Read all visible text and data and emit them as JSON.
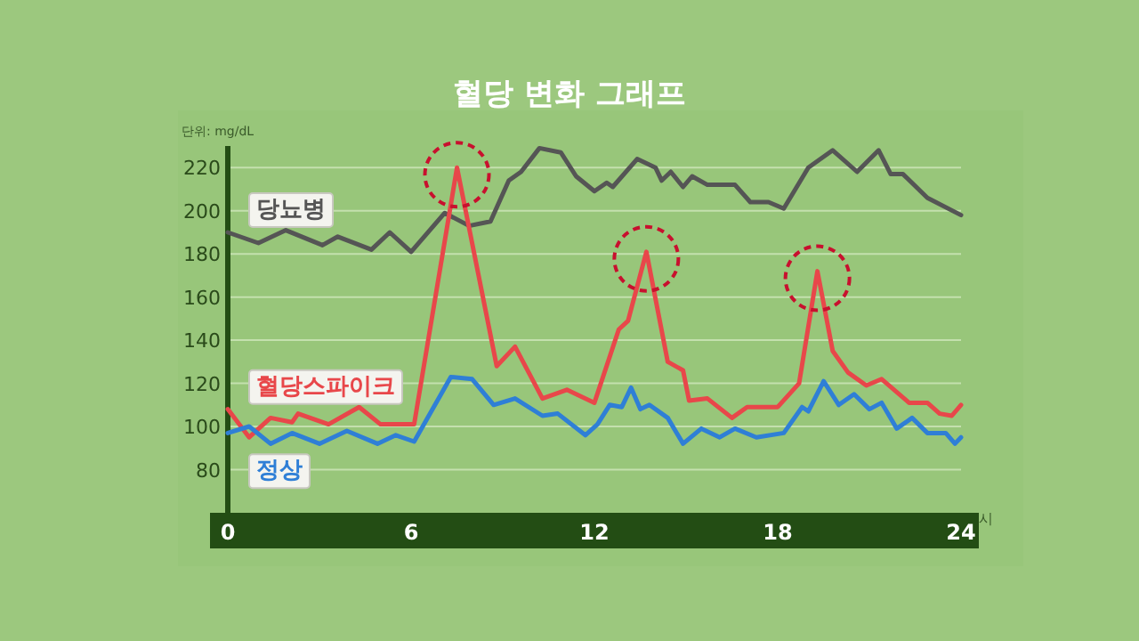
{
  "chart_data": {
    "type": "line",
    "title": "혈당 변화 그래프",
    "ylabel": "단위: mg/dL",
    "xlabel": "시",
    "xlim": [
      0,
      24
    ],
    "xticks": [
      0,
      6,
      12,
      18,
      24
    ],
    "ylim": [
      60,
      230
    ],
    "yticks": [
      80,
      100,
      120,
      140,
      160,
      180,
      200,
      220
    ],
    "grid": "y",
    "marker": "none",
    "line_style": "solid",
    "series": [
      {
        "name": "당뇨병",
        "color": "#555555",
        "x": [
          0,
          1,
          1.9,
          3.1,
          3.6,
          4.7,
          5.3,
          6,
          7.1,
          7.9,
          8.6,
          9.2,
          9.6,
          10.2,
          10.9,
          11.4,
          12,
          12.4,
          12.6,
          13.4,
          14.0,
          14.2,
          14.5,
          14.9,
          15.2,
          15.7,
          16.6,
          17.1,
          17.7,
          18.2,
          19.0,
          19.8,
          20.6,
          21.3,
          21.7,
          22.1,
          22.9,
          24
        ],
        "values": [
          190,
          185,
          191,
          184,
          188,
          182,
          190,
          181,
          199,
          193,
          195,
          214,
          218,
          229,
          227,
          216,
          209,
          213,
          211,
          224,
          220,
          214,
          218,
          211,
          216,
          212,
          212,
          204,
          204,
          201,
          220,
          228,
          218,
          228,
          217,
          217,
          206,
          198
        ]
      },
      {
        "name": "혈당스파이크",
        "color": "#e8474a",
        "x": [
          0,
          0.7,
          1.4,
          2.1,
          2.3,
          3.3,
          4.3,
          5,
          6.1,
          7.5,
          8.8,
          9.4,
          10.3,
          11.1,
          12,
          12.8,
          13.1,
          13.7,
          14.4,
          14.9,
          15.1,
          15.7,
          16.5,
          17,
          18,
          18.7,
          19.3,
          19.8,
          20.3,
          20.9,
          21.4,
          22.3,
          22.9,
          23.3,
          23.7,
          24
        ],
        "values": [
          108,
          95,
          104,
          102,
          106,
          101,
          109,
          101,
          101,
          220,
          128,
          137,
          113,
          117,
          111,
          145,
          149,
          181,
          130,
          126,
          112,
          113,
          104,
          109,
          109,
          120,
          172,
          135,
          125,
          119,
          122,
          111,
          111,
          106,
          105,
          110
        ]
      },
      {
        "name": "정상",
        "color": "#2f7fd6",
        "x": [
          0,
          0.7,
          1.4,
          2.1,
          3,
          3.9,
          4.9,
          5.5,
          6.1,
          7.3,
          8,
          8.7,
          9.4,
          10.3,
          10.8,
          11.7,
          12.1,
          12.5,
          12.9,
          13.2,
          13.5,
          13.8,
          14.4,
          14.9,
          15.5,
          16.1,
          16.6,
          17.3,
          18.2,
          18.8,
          19.0,
          19.5,
          20.0,
          20.5,
          21.0,
          21.4,
          21.9,
          22.4,
          22.9,
          23.5,
          23.8,
          24
        ],
        "values": [
          97,
          100,
          92,
          97,
          92,
          98,
          92,
          96,
          93,
          123,
          122,
          110,
          113,
          105,
          106,
          96,
          101,
          110,
          109,
          118,
          108,
          110,
          104,
          92,
          99,
          95,
          99,
          95,
          97,
          109,
          107,
          121,
          110,
          115,
          108,
          111,
          99,
          104,
          97,
          97,
          92,
          95
        ]
      }
    ]
  }
}
